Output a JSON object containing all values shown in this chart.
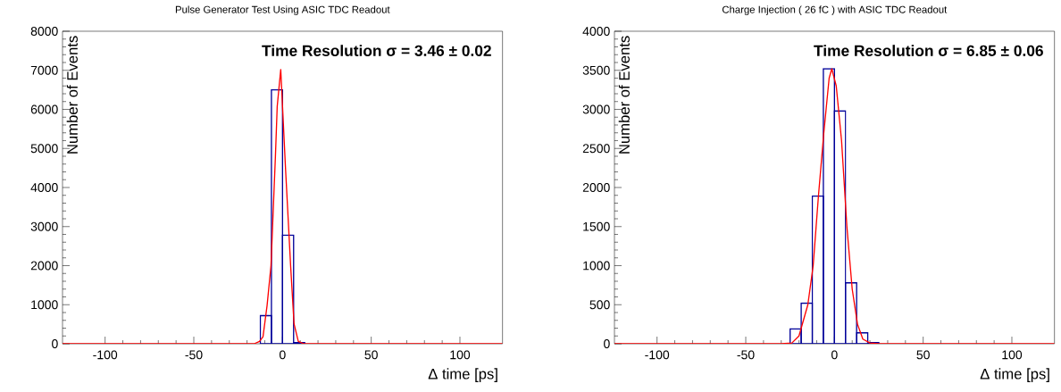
{
  "chart_data": [
    {
      "type": "histogram",
      "title": "Pulse Generator Test Using ASIC TDC Readout",
      "xlabel": "Δ time [ps]",
      "ylabel": "Number of Events",
      "annotations": [
        "Time Resolution σ = 3.46 ± 0.02"
      ],
      "xlim": [
        -124,
        124
      ],
      "xticks": [
        -100,
        -50,
        0,
        50,
        100
      ],
      "ylim": [
        0,
        8000
      ],
      "yticks": [
        0,
        1000,
        2000,
        3000,
        4000,
        5000,
        6000,
        7000,
        8000
      ],
      "grid": false,
      "series": [
        {
          "color": "#000099",
          "bins": [
            -12.5,
            -6.25,
            0,
            6.25,
            12.5
          ],
          "values": [
            720,
            6500,
            2780,
            30
          ]
        },
        {
          "type": "line",
          "color": "#ff0000",
          "x": [
            -124,
            -16,
            -13,
            -11,
            -8.7,
            -6.5,
            -4,
            -3,
            -1,
            1.7,
            4.6,
            6.5,
            8.9,
            12,
            124
          ],
          "values": [
            0,
            0,
            60,
            180,
            980,
            2000,
            4800,
            6070,
            7020,
            4480,
            1970,
            510,
            60,
            0,
            0
          ]
        }
      ]
    },
    {
      "type": "histogram",
      "title": "Charge Injection ( 26 fC ) with ASIC TDC Readout",
      "xlabel": "Δ time [ps]",
      "ylabel": "Number of Events",
      "annotations": [
        "Time Resolution σ = 6.85 ± 0.06"
      ],
      "xlim": [
        -124,
        124
      ],
      "xticks": [
        -100,
        -50,
        0,
        50,
        100
      ],
      "ylim": [
        0,
        4000
      ],
      "yticks": [
        0,
        500,
        1000,
        1500,
        2000,
        2500,
        3000,
        3500,
        4000
      ],
      "grid": false,
      "series": [
        {
          "color": "#000099",
          "bins": [
            -25,
            -18.75,
            -12.5,
            -6.25,
            0,
            6.25,
            12.5,
            18.75,
            25
          ],
          "values": [
            190,
            520,
            1890,
            3520,
            2980,
            780,
            140,
            15
          ]
        },
        {
          "type": "line",
          "color": "#ff0000",
          "x": [
            -124,
            -30,
            -24,
            -20,
            -15,
            -12,
            -9,
            -6,
            -3,
            -1.5,
            1,
            4,
            7,
            10,
            13,
            16,
            20,
            25,
            124
          ],
          "values": [
            0,
            0,
            10,
            100,
            500,
            1000,
            1900,
            2700,
            3400,
            3520,
            3300,
            2600,
            1500,
            700,
            250,
            60,
            10,
            0,
            0
          ]
        }
      ]
    }
  ]
}
